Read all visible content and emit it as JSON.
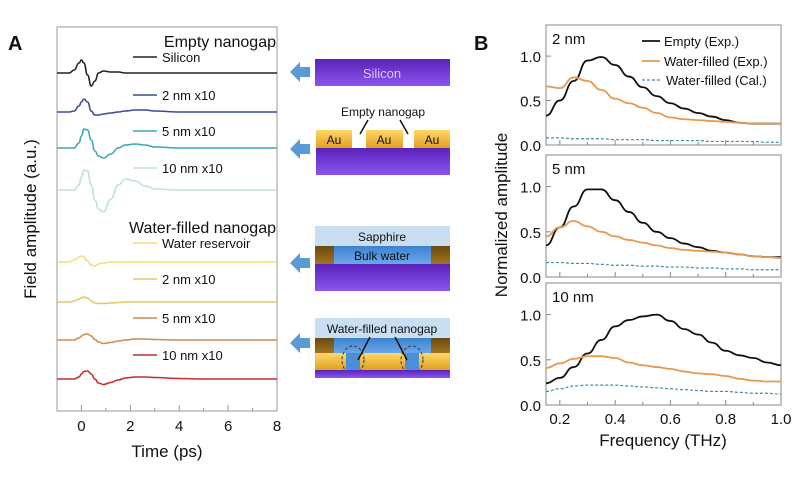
{
  "chart_data": [
    {
      "panel": "A",
      "type": "line",
      "xlabel": "Time (ps)",
      "ylabel": "Field amplitude (a.u.)",
      "xlim": [
        -1,
        8
      ],
      "xticks": [
        "0",
        "2",
        "4",
        "6",
        "8"
      ],
      "group_labels": [
        "Empty nanogap",
        "Water-filled nanogap"
      ],
      "time": [
        -1,
        -0.5,
        -0.3,
        -0.1,
        0,
        0.1,
        0.25,
        0.4,
        0.55,
        0.7,
        0.9,
        1.2,
        1.5,
        1.8,
        2.2,
        2.6,
        3,
        4,
        5,
        6,
        7,
        8
      ],
      "series": [
        {
          "name": "Silicon",
          "group": 0,
          "color": "#222222",
          "values": [
            0,
            0,
            0.3,
            1.0,
            1.3,
            1.0,
            -0.2,
            -1.3,
            -0.8,
            0,
            0.2,
            0.1,
            0.1,
            0,
            0,
            0,
            0,
            0,
            0,
            0,
            0,
            0
          ]
        },
        {
          "name": "2 nm x10",
          "group": 0,
          "color": "#3b4f8f",
          "values": [
            0,
            0,
            0.1,
            0.6,
            1.0,
            1.3,
            1.0,
            0.1,
            -0.3,
            -0.3,
            -0.2,
            -0.1,
            0,
            0.1,
            0.2,
            0.2,
            0.1,
            0,
            0,
            0,
            0,
            0
          ]
        },
        {
          "name": "5 nm x10",
          "group": 0,
          "color": "#3aa8b8",
          "values": [
            0,
            0,
            0,
            0.5,
            1.2,
            1.9,
            1.8,
            0.8,
            -0.3,
            -0.8,
            -1.0,
            -0.6,
            0,
            0.3,
            0.4,
            0.3,
            0.1,
            0,
            0,
            0,
            0,
            0
          ]
        },
        {
          "name": "10 nm x10",
          "group": 0,
          "color": "#bfe2d4",
          "values": [
            0,
            0,
            0,
            0.5,
            1.3,
            2.0,
            1.9,
            0.5,
            -1.0,
            -1.9,
            -2.2,
            -0.9,
            0.5,
            1.1,
            0.9,
            0.4,
            0.1,
            0,
            0,
            0,
            0,
            0
          ]
        },
        {
          "name": "Water reservoir",
          "group": 1,
          "color": "#f0df7a",
          "values": [
            0,
            0,
            0.2,
            0.5,
            0.6,
            0.5,
            0.1,
            -0.3,
            -0.4,
            -0.2,
            -0.1,
            0,
            0,
            0,
            0,
            0,
            0,
            0,
            0,
            0,
            0,
            0
          ]
        },
        {
          "name": "2 nm x10",
          "group": 1,
          "color": "#e6c66a",
          "values": [
            0,
            0,
            0.1,
            0.3,
            0.4,
            0.5,
            0.4,
            0.1,
            -0.1,
            -0.15,
            -0.15,
            -0.1,
            -0.05,
            0,
            0,
            0,
            0,
            0,
            0,
            0,
            0,
            0
          ]
        },
        {
          "name": "5 nm x10",
          "group": 1,
          "color": "#d08a50",
          "values": [
            0,
            0,
            0,
            0.2,
            0.4,
            0.55,
            0.6,
            0.4,
            0.05,
            -0.2,
            -0.35,
            -0.25,
            -0.1,
            0,
            0.1,
            0.1,
            0.05,
            0,
            0,
            0,
            0,
            0
          ]
        },
        {
          "name": "10 nm x10",
          "group": 1,
          "color": "#c0302c",
          "values": [
            0,
            0,
            0,
            0.2,
            0.5,
            0.75,
            0.8,
            0.5,
            0,
            -0.4,
            -0.55,
            -0.35,
            -0.1,
            0.1,
            0.2,
            0.2,
            0.15,
            0.05,
            0,
            0,
            0,
            0
          ]
        }
      ]
    },
    {
      "panel": "B",
      "type": "line",
      "xlabel": "Frequency (THz)",
      "ylabel": "Normalized amplitude",
      "xlim": [
        0.15,
        1.0
      ],
      "ylim": [
        0,
        1.35
      ],
      "xticks": [
        "0.2",
        "0.4",
        "0.6",
        "0.8",
        "1.0"
      ],
      "yticks": [
        "0.0",
        "0.5",
        "1.0"
      ],
      "legend": [
        {
          "name": "Empty (Exp.)",
          "color": "#111111",
          "dash": false
        },
        {
          "name": "Water-filled (Exp.)",
          "color": "#e8994f",
          "dash": false
        },
        {
          "name": "Water-filled (Cal.)",
          "color": "#3f8fa8",
          "dash": true
        }
      ],
      "x": [
        0.15,
        0.2,
        0.25,
        0.3,
        0.35,
        0.4,
        0.45,
        0.5,
        0.55,
        0.6,
        0.65,
        0.7,
        0.75,
        0.8,
        0.85,
        0.9,
        0.95,
        1.0
      ],
      "subplots": [
        {
          "label": "2 nm",
          "series": [
            [
              0.33,
              0.5,
              0.72,
              0.95,
              0.99,
              0.9,
              0.77,
              0.65,
              0.55,
              0.47,
              0.41,
              0.36,
              0.32,
              0.28,
              0.25,
              0.24,
              0.24,
              0.24
            ],
            [
              0.66,
              0.64,
              0.76,
              0.72,
              0.62,
              0.52,
              0.47,
              0.42,
              0.36,
              0.31,
              0.29,
              0.28,
              0.27,
              0.26,
              0.25,
              0.24,
              0.24,
              0.24
            ],
            [
              0.08,
              0.08,
              0.07,
              0.07,
              0.07,
              0.06,
              0.06,
              0.06,
              0.05,
              0.05,
              0.05,
              0.05,
              0.04,
              0.04,
              0.04,
              0.04,
              0.03,
              0.03
            ]
          ]
        },
        {
          "label": "5 nm",
          "series": [
            [
              0.35,
              0.55,
              0.78,
              0.97,
              0.97,
              0.85,
              0.72,
              0.6,
              0.5,
              0.43,
              0.37,
              0.33,
              0.29,
              0.27,
              0.25,
              0.23,
              0.22,
              0.22
            ],
            [
              0.45,
              0.55,
              0.62,
              0.56,
              0.5,
              0.45,
              0.41,
              0.38,
              0.35,
              0.32,
              0.3,
              0.29,
              0.28,
              0.27,
              0.25,
              0.23,
              0.22,
              0.21
            ],
            [
              0.16,
              0.16,
              0.15,
              0.15,
              0.14,
              0.13,
              0.13,
              0.12,
              0.12,
              0.11,
              0.11,
              0.1,
              0.1,
              0.09,
              0.09,
              0.08,
              0.08,
              0.08
            ]
          ]
        },
        {
          "label": "10 nm",
          "series": [
            [
              0.24,
              0.3,
              0.42,
              0.57,
              0.72,
              0.87,
              0.94,
              0.98,
              1.0,
              0.93,
              0.84,
              0.78,
              0.69,
              0.6,
              0.55,
              0.52,
              0.47,
              0.44
            ],
            [
              0.41,
              0.46,
              0.51,
              0.54,
              0.54,
              0.52,
              0.47,
              0.44,
              0.42,
              0.4,
              0.37,
              0.35,
              0.34,
              0.32,
              0.29,
              0.27,
              0.26,
              0.26
            ],
            [
              0.15,
              0.18,
              0.21,
              0.22,
              0.22,
              0.22,
              0.21,
              0.2,
              0.19,
              0.18,
              0.17,
              0.16,
              0.15,
              0.15,
              0.14,
              0.13,
              0.13,
              0.12
            ]
          ]
        }
      ]
    }
  ],
  "panel_labels": {
    "a": "A",
    "b": "B"
  },
  "schematics": {
    "silicon": "Silicon",
    "empty_nanogap": "Empty nanogap",
    "au": "Au",
    "sapphire": "Sapphire",
    "bulk_water": "Bulk water",
    "water_filled_nanogap": "Water-filled nanogap",
    "colors": {
      "substrate": "#6a2fd6",
      "gold": "#f2b632",
      "water": "#4a90d9",
      "sapphire": "#c9def0",
      "arrow": "#5b9bd5"
    }
  }
}
